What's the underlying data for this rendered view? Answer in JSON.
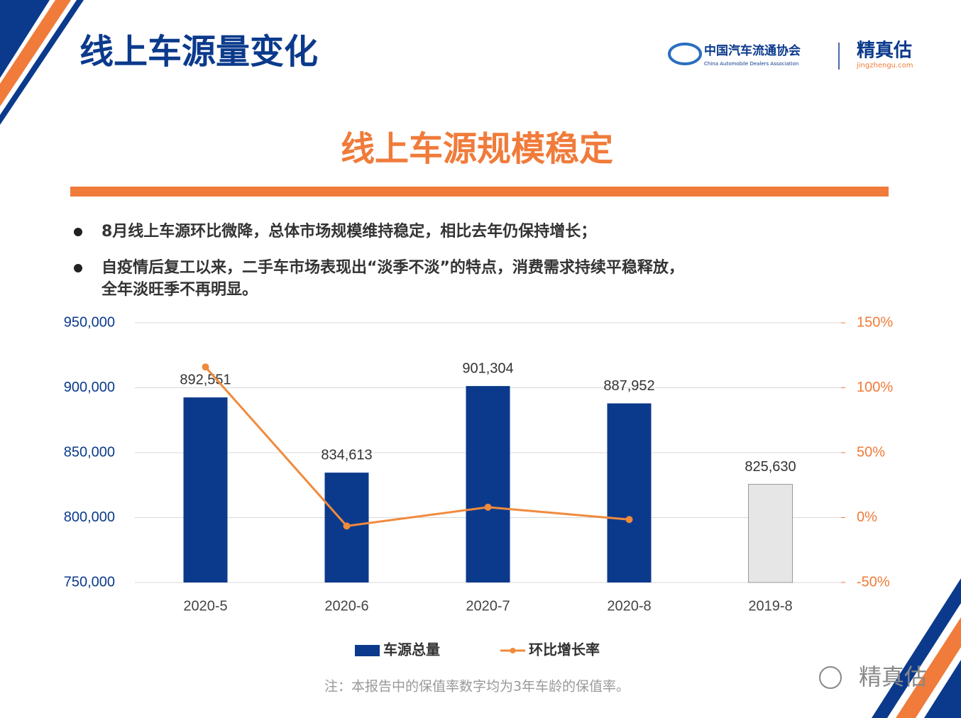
{
  "header": {
    "title": "线上车源量变化",
    "logo": {
      "org_cn": "中国汽车流通协会",
      "org_en": "China Automobile Dealers Association",
      "brand": "精真估",
      "brand_url": "jingzhengu.com"
    }
  },
  "subtitle": "线上车源规模稳定",
  "bullets": [
    {
      "lines": [
        "8月线上车源环比微降，总体市场规模维持稳定，相比去年仍保持增长；"
      ]
    },
    {
      "lines": [
        "自疫情后复工以来，二手车市场表现出“淡季不淡”的特点，消费需求持续平稳释放，",
        "全年淡旺季不再明显。"
      ]
    }
  ],
  "chart_data": {
    "type": "bar-line",
    "categories": [
      "2020-5",
      "2020-6",
      "2020-7",
      "2020-8",
      "2019-8"
    ],
    "series": [
      {
        "name": "车源总量",
        "type": "bar",
        "color": "#0b3a8c",
        "colors": [
          "#0b3a8c",
          "#0b3a8c",
          "#0b3a8c",
          "#0b3a8c",
          "#e6e6e6"
        ],
        "values": [
          892551,
          834613,
          901304,
          887952,
          825630
        ],
        "value_labels": [
          "892,551",
          "834,613",
          "901,304",
          "887,952",
          "825,630"
        ]
      },
      {
        "name": "环比增长率",
        "type": "line",
        "axis": "y2",
        "color": "#f08a3c",
        "values": [
          116,
          -6.5,
          8,
          -1.5,
          null
        ]
      }
    ],
    "ylim": [
      750000,
      950000
    ],
    "yticks": [
      {
        "value": 750000,
        "label": "750,000"
      },
      {
        "value": 800000,
        "label": "800,000"
      },
      {
        "value": 850000,
        "label": "850,000"
      },
      {
        "value": 900000,
        "label": "900,000"
      },
      {
        "value": 950000,
        "label": "950,000"
      }
    ],
    "y2lim": [
      -50,
      150
    ],
    "y2ticks": [
      {
        "value": -50,
        "label": "-50%"
      },
      {
        "value": 0,
        "label": "0%"
      },
      {
        "value": 50,
        "label": "50%"
      },
      {
        "value": 100,
        "label": "100%"
      },
      {
        "value": 150,
        "label": "150%"
      }
    ],
    "grid": true,
    "legend": "bottom"
  },
  "footnote": "注：本报告中的保值率数字均为3年车龄的保值率。",
  "watermark": "精真估"
}
